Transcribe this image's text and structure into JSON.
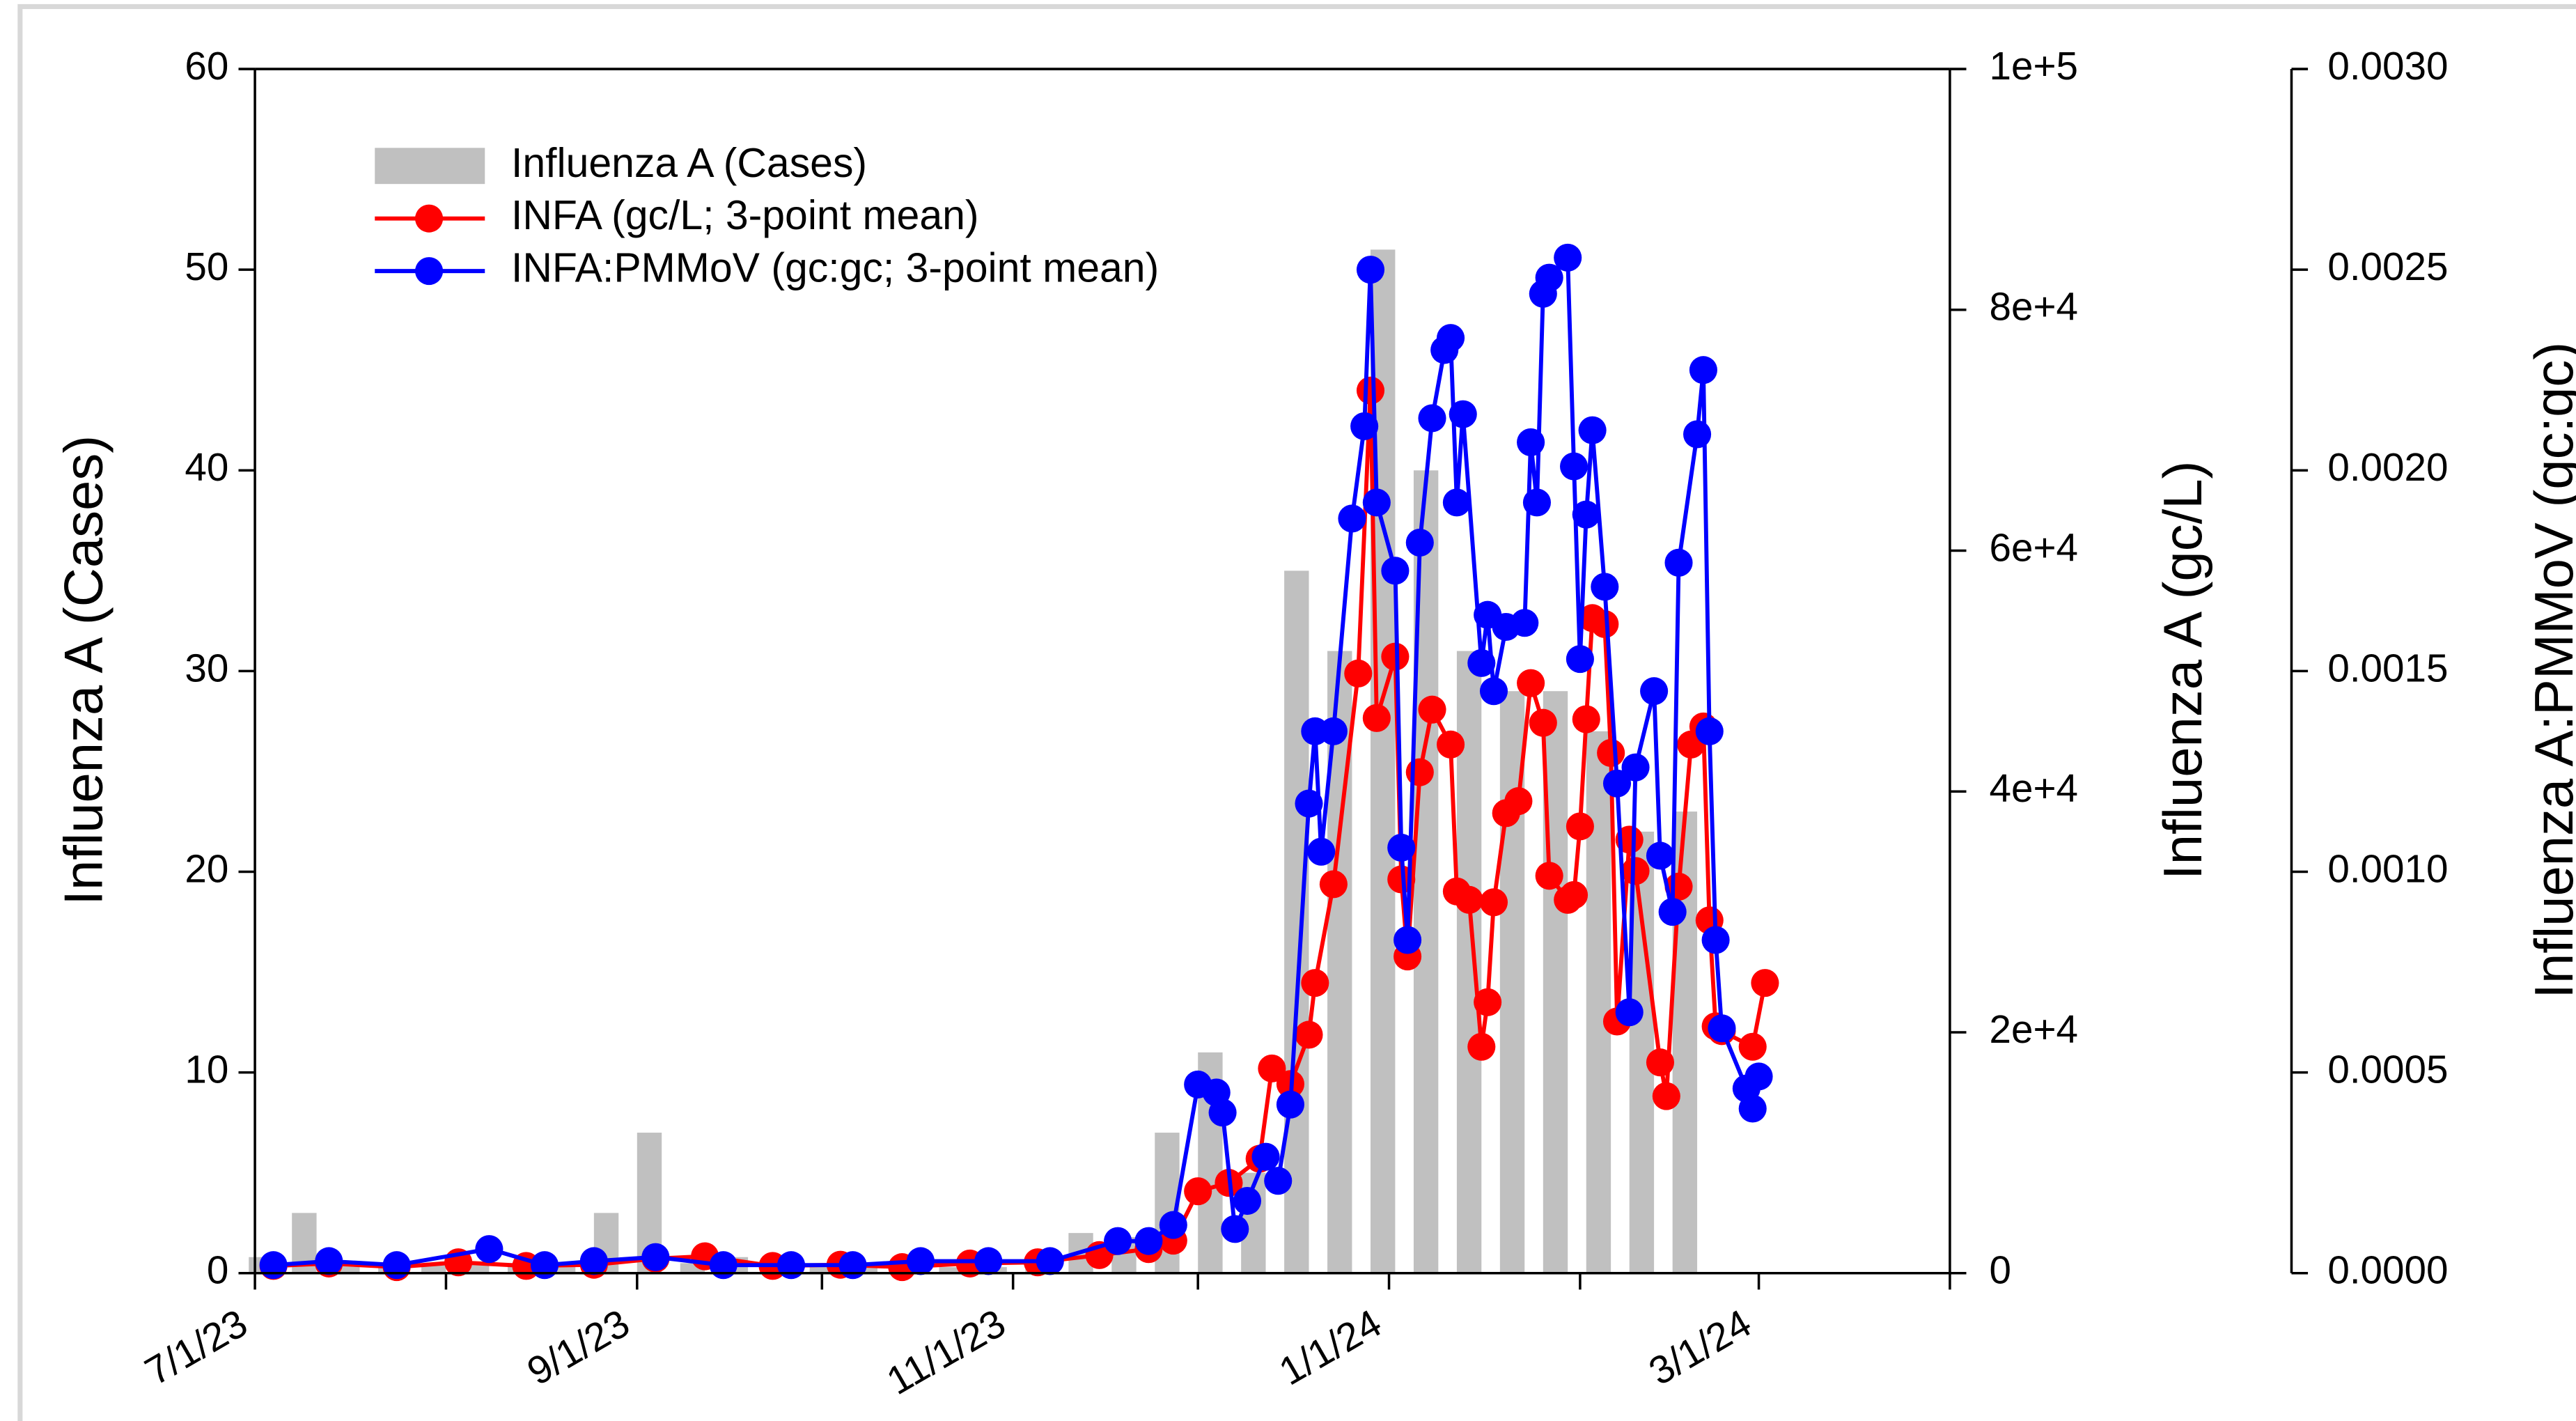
{
  "chart_data": {
    "type": "bar-line",
    "ylabel": "Influenza A (Cases)",
    "y2label": "Influenza A (gc/L)",
    "y3label": "Influenza A:PMMoV (gc:gc)",
    "xlim": [
      "2023-07-01",
      "2024-04-01"
    ],
    "xticks": [
      {
        "value": "2023-07-01",
        "label": "7/1/23"
      },
      {
        "value": "2023-09-01",
        "label": "9/1/23"
      },
      {
        "value": "2023-11-01",
        "label": "11/1/23"
      },
      {
        "value": "2024-01-01",
        "label": "1/1/24"
      },
      {
        "value": "2024-03-01",
        "label": "3/1/24"
      }
    ],
    "xminorticks": [
      "2023-08-01",
      "2023-10-01",
      "2023-12-01",
      "2024-02-01",
      "2024-04-01"
    ],
    "ylim": [
      0,
      60
    ],
    "yticks": [
      0,
      10,
      20,
      30,
      40,
      50,
      60
    ],
    "y2lim": [
      0,
      100000
    ],
    "y2ticks": [
      0,
      {
        "value": 20000,
        "label": "2e+4"
      },
      {
        "value": 40000,
        "label": "4e+4"
      },
      {
        "value": 60000,
        "label": "6e+4"
      },
      {
        "value": 80000,
        "label": "8e+4"
      },
      {
        "value": 100000,
        "label": "1e+5"
      }
    ],
    "y3lim": [
      0,
      0.003
    ],
    "y3ticks": [
      {
        "value": 0,
        "label": "0.0000"
      },
      {
        "value": 0.0005,
        "label": "0.0005"
      },
      {
        "value": 0.001,
        "label": "0.0010"
      },
      {
        "value": 0.0015,
        "label": "0.0015"
      },
      {
        "value": 0.002,
        "label": "0.0020"
      },
      {
        "value": 0.0025,
        "label": "0.0025"
      },
      {
        "value": 0.003,
        "label": "0.0030"
      }
    ],
    "legend": "upper left",
    "bars": {
      "name": "Influenza A (Cases)",
      "color": "#c0c0c0",
      "axis": "y",
      "x": [
        "2023-07-02",
        "2023-07-09",
        "2023-07-16",
        "2023-07-23",
        "2023-07-30",
        "2023-08-06",
        "2023-08-13",
        "2023-08-20",
        "2023-08-27",
        "2023-09-03",
        "2023-09-10",
        "2023-09-17",
        "2023-09-24",
        "2023-10-01",
        "2023-10-08",
        "2023-10-15",
        "2023-10-22",
        "2023-10-29",
        "2023-11-05",
        "2023-11-12",
        "2023-11-19",
        "2023-11-26",
        "2023-12-03",
        "2023-12-10",
        "2023-12-17",
        "2023-12-24",
        "2023-12-31",
        "2024-01-07",
        "2024-01-14",
        "2024-01-21",
        "2024-01-28",
        "2024-02-04",
        "2024-02-11",
        "2024-02-18"
      ],
      "values": [
        0.8,
        3,
        0.5,
        0.5,
        0.5,
        0.5,
        0.5,
        0.5,
        3,
        7,
        0.5,
        0.8,
        0.5,
        0.5,
        0.5,
        0.3,
        0.3,
        0.3,
        0.5,
        2,
        1.8,
        7,
        11,
        5,
        35,
        31,
        51,
        40,
        31,
        29,
        29,
        27,
        22,
        23
      ]
    },
    "series": [
      {
        "name": "INFA (gc/L; 3-point mean)",
        "color": "#ff0000",
        "axis": "y2",
        "x": [
          "2023-07-04",
          "2023-07-13",
          "2023-07-24",
          "2023-08-03",
          "2023-08-14",
          "2023-08-25",
          "2023-09-04",
          "2023-09-12",
          "2023-09-23",
          "2023-10-04",
          "2023-10-14",
          "2023-10-25",
          "2023-11-05",
          "2023-11-15",
          "2023-11-23",
          "2023-11-27",
          "2023-12-01",
          "2023-12-06",
          "2023-12-11",
          "2023-12-13",
          "2023-12-16",
          "2023-12-19",
          "2023-12-20",
          "2023-12-23",
          "2023-12-27",
          "2023-12-29",
          "2023-12-30",
          "2024-01-02",
          "2024-01-03",
          "2024-01-04",
          "2024-01-06",
          "2024-01-08",
          "2024-01-11",
          "2024-01-12",
          "2024-01-14",
          "2024-01-16",
          "2024-01-17",
          "2024-01-18",
          "2024-01-20",
          "2024-01-22",
          "2024-01-24",
          "2024-01-26",
          "2024-01-27",
          "2024-01-30",
          "2024-01-31",
          "2024-02-01",
          "2024-02-02",
          "2024-02-03",
          "2024-02-05",
          "2024-02-06",
          "2024-02-07",
          "2024-02-09",
          "2024-02-10",
          "2024-02-14",
          "2024-02-15",
          "2024-02-17",
          "2024-02-19",
          "2024-02-21",
          "2024-02-22",
          "2024-02-23",
          "2024-02-24",
          "2024-02-29",
          "2024-03-02"
        ],
        "values": [
          600,
          800,
          500,
          900,
          600,
          700,
          1200,
          1400,
          600,
          700,
          500,
          800,
          900,
          1500,
          2000,
          2700,
          6800,
          7500,
          9500,
          17000,
          15700,
          19800,
          24100,
          32300,
          49800,
          73300,
          46100,
          51200,
          32700,
          26300,
          41600,
          46800,
          43900,
          31700,
          31000,
          18800,
          22500,
          30800,
          38200,
          39200,
          49000,
          45700,
          33000,
          31000,
          31400,
          37100,
          46000,
          54400,
          53900,
          43200,
          20900,
          36000,
          33400,
          17500,
          14700,
          32100,
          43900,
          45400,
          29300,
          20500,
          20100,
          18800,
          24100
        ]
      },
      {
        "name": "INFA:PMMoV (gc:gc; 3-point mean)",
        "color": "#0000ff",
        "axis": "y3",
        "x": [
          "2023-07-04",
          "2023-07-13",
          "2023-07-24",
          "2023-08-08",
          "2023-08-17",
          "2023-08-25",
          "2023-09-04",
          "2023-09-15",
          "2023-09-26",
          "2023-10-06",
          "2023-10-17",
          "2023-10-28",
          "2023-11-07",
          "2023-11-18",
          "2023-11-23",
          "2023-11-27",
          "2023-12-01",
          "2023-12-04",
          "2023-12-05",
          "2023-12-07",
          "2023-12-09",
          "2023-12-12",
          "2023-12-14",
          "2023-12-16",
          "2023-12-19",
          "2023-12-20",
          "2023-12-21",
          "2023-12-23",
          "2023-12-26",
          "2023-12-28",
          "2023-12-29",
          "2023-12-30",
          "2024-01-02",
          "2024-01-03",
          "2024-01-04",
          "2024-01-06",
          "2024-01-08",
          "2024-01-10",
          "2024-01-11",
          "2024-01-12",
          "2024-01-13",
          "2024-01-16",
          "2024-01-17",
          "2024-01-18",
          "2024-01-20",
          "2024-01-23",
          "2024-01-24",
          "2024-01-25",
          "2024-01-26",
          "2024-01-27",
          "2024-01-30",
          "2024-01-31",
          "2024-02-01",
          "2024-02-02",
          "2024-02-03",
          "2024-02-05",
          "2024-02-07",
          "2024-02-09",
          "2024-02-10",
          "2024-02-13",
          "2024-02-14",
          "2024-02-16",
          "2024-02-17",
          "2024-02-20",
          "2024-02-21",
          "2024-02-22",
          "2024-02-23",
          "2024-02-24",
          "2024-02-28",
          "2024-02-29",
          "2024-03-01"
        ],
        "values": [
          2e-05,
          3e-05,
          2e-05,
          6e-05,
          2e-05,
          3e-05,
          4e-05,
          2e-05,
          2e-05,
          2e-05,
          3e-05,
          3e-05,
          3e-05,
          8e-05,
          8e-05,
          0.00012,
          0.00047,
          0.00045,
          0.0004,
          0.00011,
          0.00018,
          0.00029,
          0.00023,
          0.00042,
          0.00117,
          0.00135,
          0.00105,
          0.00135,
          0.00188,
          0.00211,
          0.0025,
          0.00192,
          0.00175,
          0.00106,
          0.00083,
          0.00182,
          0.00213,
          0.0023,
          0.00233,
          0.00192,
          0.00214,
          0.00152,
          0.00164,
          0.00145,
          0.00161,
          0.00162,
          0.00207,
          0.00192,
          0.00244,
          0.00248,
          0.00253,
          0.00201,
          0.00153,
          0.00189,
          0.0021,
          0.00171,
          0.00122,
          0.00065,
          0.00126,
          0.00145,
          0.00104,
          0.0009,
          0.00177,
          0.00209,
          0.00225,
          0.00135,
          0.00083,
          0.00061,
          0.00046,
          0.00041,
          0.00049
        ]
      }
    ]
  }
}
